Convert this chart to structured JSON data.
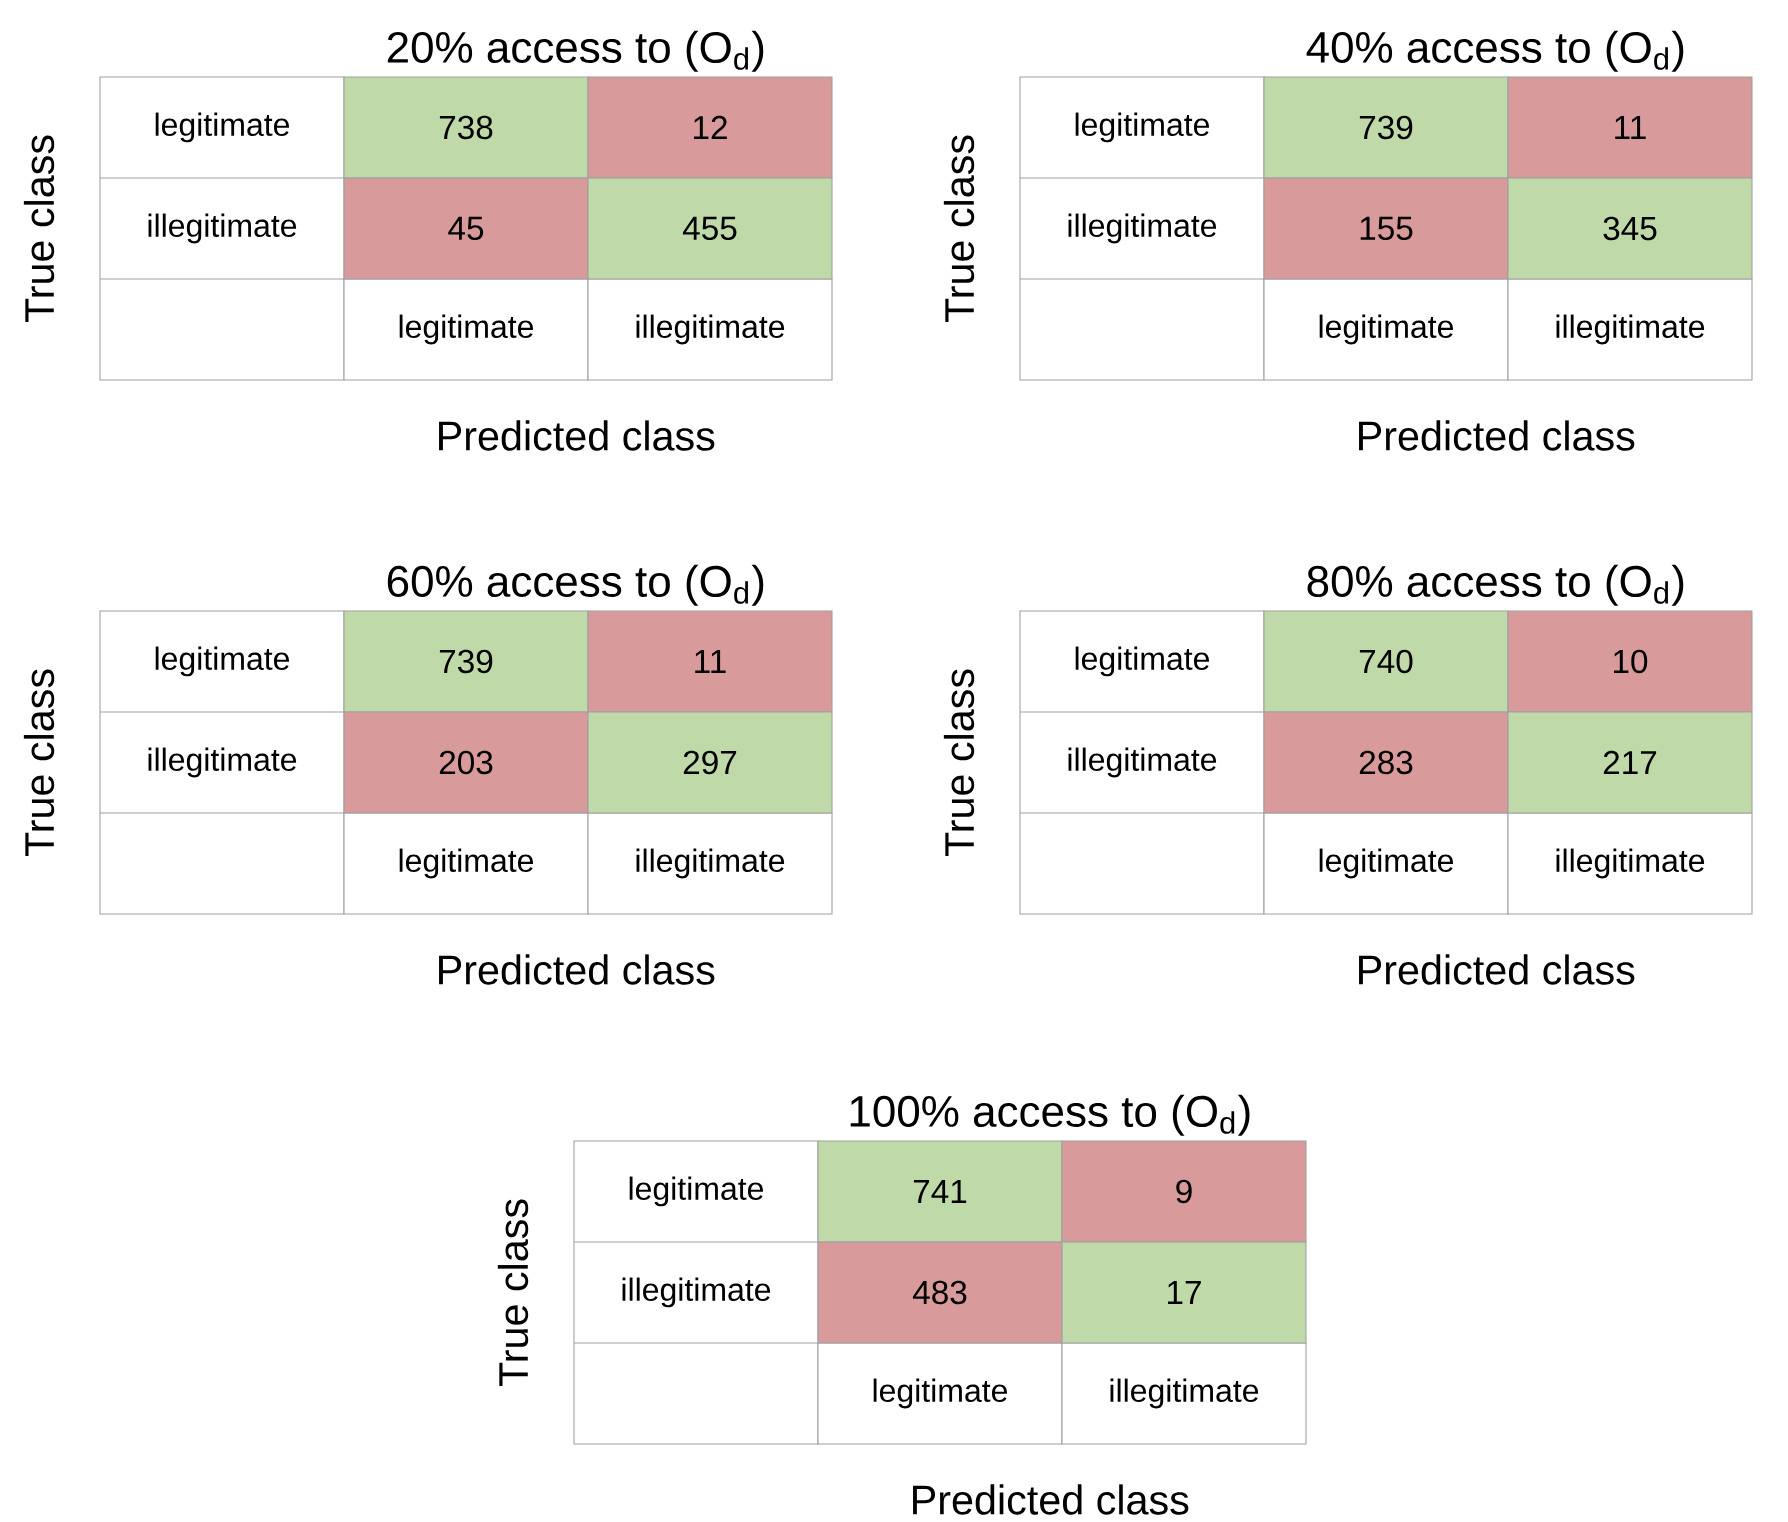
{
  "chart_data": [
    {
      "type": "heatmap",
      "title": "20% access to (O$_{d}$)",
      "xlabel": "Predicted class",
      "ylabel": "True class",
      "categories": [
        "legitimate",
        "illegitimate"
      ],
      "y_categories": [
        "legitimate",
        "illegitimate"
      ],
      "cells": [
        [
          738,
          12
        ],
        [
          45,
          455
        ]
      ],
      "colors": [
        [
          "#c0d9a8",
          "#d89a9a"
        ],
        [
          "#d89a9a",
          "#c0d9a8"
        ]
      ],
      "data_labels": true
    },
    {
      "type": "heatmap",
      "title": "40% access to (O$_{d}$)",
      "xlabel": "Predicted class",
      "ylabel": "True class",
      "categories": [
        "legitimate",
        "illegitimate"
      ],
      "y_categories": [
        "legitimate",
        "illegitimate"
      ],
      "cells": [
        [
          739,
          11
        ],
        [
          155,
          345
        ]
      ],
      "colors": [
        [
          "#c0d9a8",
          "#d89a9a"
        ],
        [
          "#d89a9a",
          "#c0d9a8"
        ]
      ],
      "data_labels": true
    },
    {
      "type": "heatmap",
      "title": "60% access to (O$_{d}$)",
      "xlabel": "Predicted class",
      "ylabel": "True class",
      "categories": [
        "legitimate",
        "illegitimate"
      ],
      "y_categories": [
        "legitimate",
        "illegitimate"
      ],
      "cells": [
        [
          739,
          11
        ],
        [
          203,
          297
        ]
      ],
      "colors": [
        [
          "#c0d9a8",
          "#d89a9a"
        ],
        [
          "#d89a9a",
          "#c0d9a8"
        ]
      ],
      "data_labels": true
    },
    {
      "type": "heatmap",
      "title": "80% access to (O$_{d}$)",
      "xlabel": "Predicted class",
      "ylabel": "True class",
      "categories": [
        "legitimate",
        "illegitimate"
      ],
      "y_categories": [
        "legitimate",
        "illegitimate"
      ],
      "cells": [
        [
          740,
          10
        ],
        [
          283,
          217
        ]
      ],
      "colors": [
        [
          "#c0d9a8",
          "#d89a9a"
        ],
        [
          "#d89a9a",
          "#c0d9a8"
        ]
      ],
      "data_labels": true
    },
    {
      "type": "heatmap",
      "title": "100% access to (O$_{d}$)",
      "xlabel": "Predicted class",
      "ylabel": "True class",
      "categories": [
        "legitimate",
        "illegitimate"
      ],
      "y_categories": [
        "legitimate",
        "illegitimate"
      ],
      "cells": [
        [
          741,
          9
        ],
        [
          483,
          17
        ]
      ],
      "colors": [
        [
          "#c0d9a8",
          "#d89a9a"
        ],
        [
          "#d89a9a",
          "#c0d9a8"
        ]
      ],
      "data_labels": true
    }
  ]
}
